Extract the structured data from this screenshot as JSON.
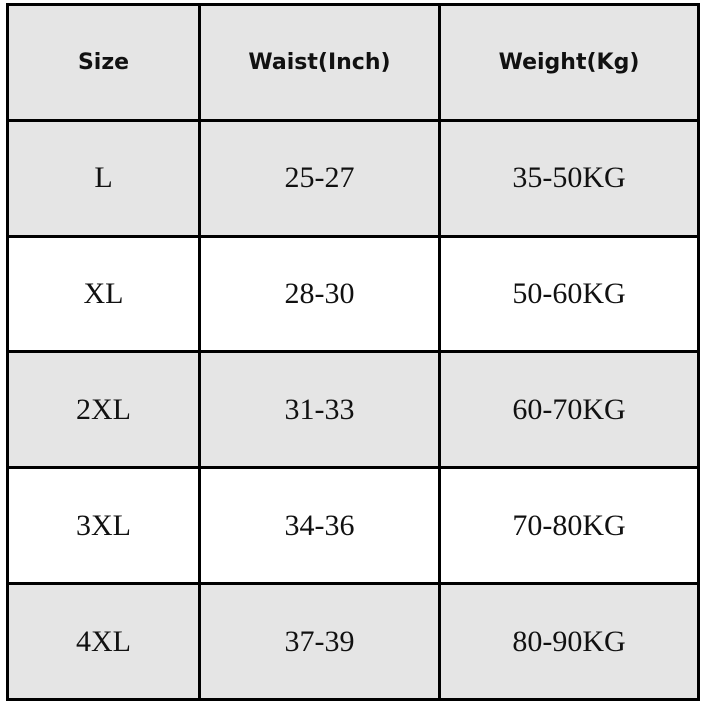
{
  "headers": [
    "Size",
    "Waist(Inch)",
    "Weight(Kg)"
  ],
  "rows": [
    [
      "L",
      "25-27",
      "35-50KG"
    ],
    [
      "XL",
      "28-30",
      "50-60KG"
    ],
    [
      "2XL",
      "31-33",
      "60-70KG"
    ],
    [
      "3XL",
      "34-36",
      "70-80KG"
    ],
    [
      "4XL",
      "37-39",
      "80-90KG"
    ]
  ],
  "colors": {
    "gray_row": "#e5e5e5",
    "white_row": "#ffffff",
    "border": "#000000"
  }
}
